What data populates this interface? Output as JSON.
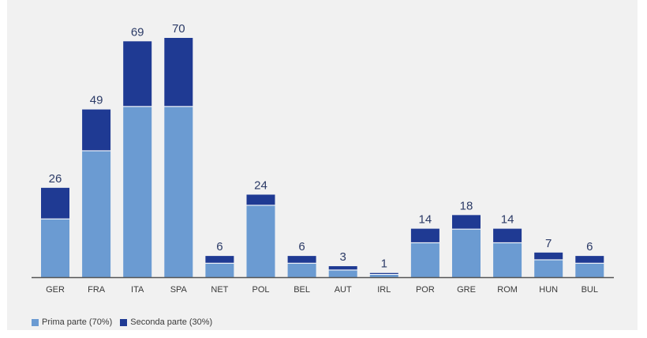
{
  "chart_data": {
    "type": "bar",
    "stacked": true,
    "categories": [
      "GER",
      "FRA",
      "ITA",
      "SPA",
      "NET",
      "POL",
      "BEL",
      "AUT",
      "IRL",
      "POR",
      "GRE",
      "ROM",
      "HUN",
      "BUL"
    ],
    "totals": [
      26,
      49,
      69,
      70,
      6,
      24,
      6,
      3,
      1,
      14,
      18,
      14,
      7,
      6
    ],
    "series": [
      {
        "name": "Prima parte (70%)",
        "color": "#6b9bd2",
        "values": [
          17,
          37,
          50,
          50,
          4,
          21,
          4,
          2,
          0.7,
          10,
          14,
          10,
          5,
          4
        ]
      },
      {
        "name": "Seconda parte (30%)",
        "color": "#1f3a93",
        "values": [
          9,
          12,
          19,
          20,
          2,
          3,
          2,
          1,
          0.3,
          4,
          4,
          4,
          2,
          2
        ]
      }
    ],
    "ylim": [
      0,
      70
    ],
    "grid": false,
    "legend_position": "bottom-left",
    "label_color": "#2b3a66",
    "axis_color": "#555555"
  }
}
